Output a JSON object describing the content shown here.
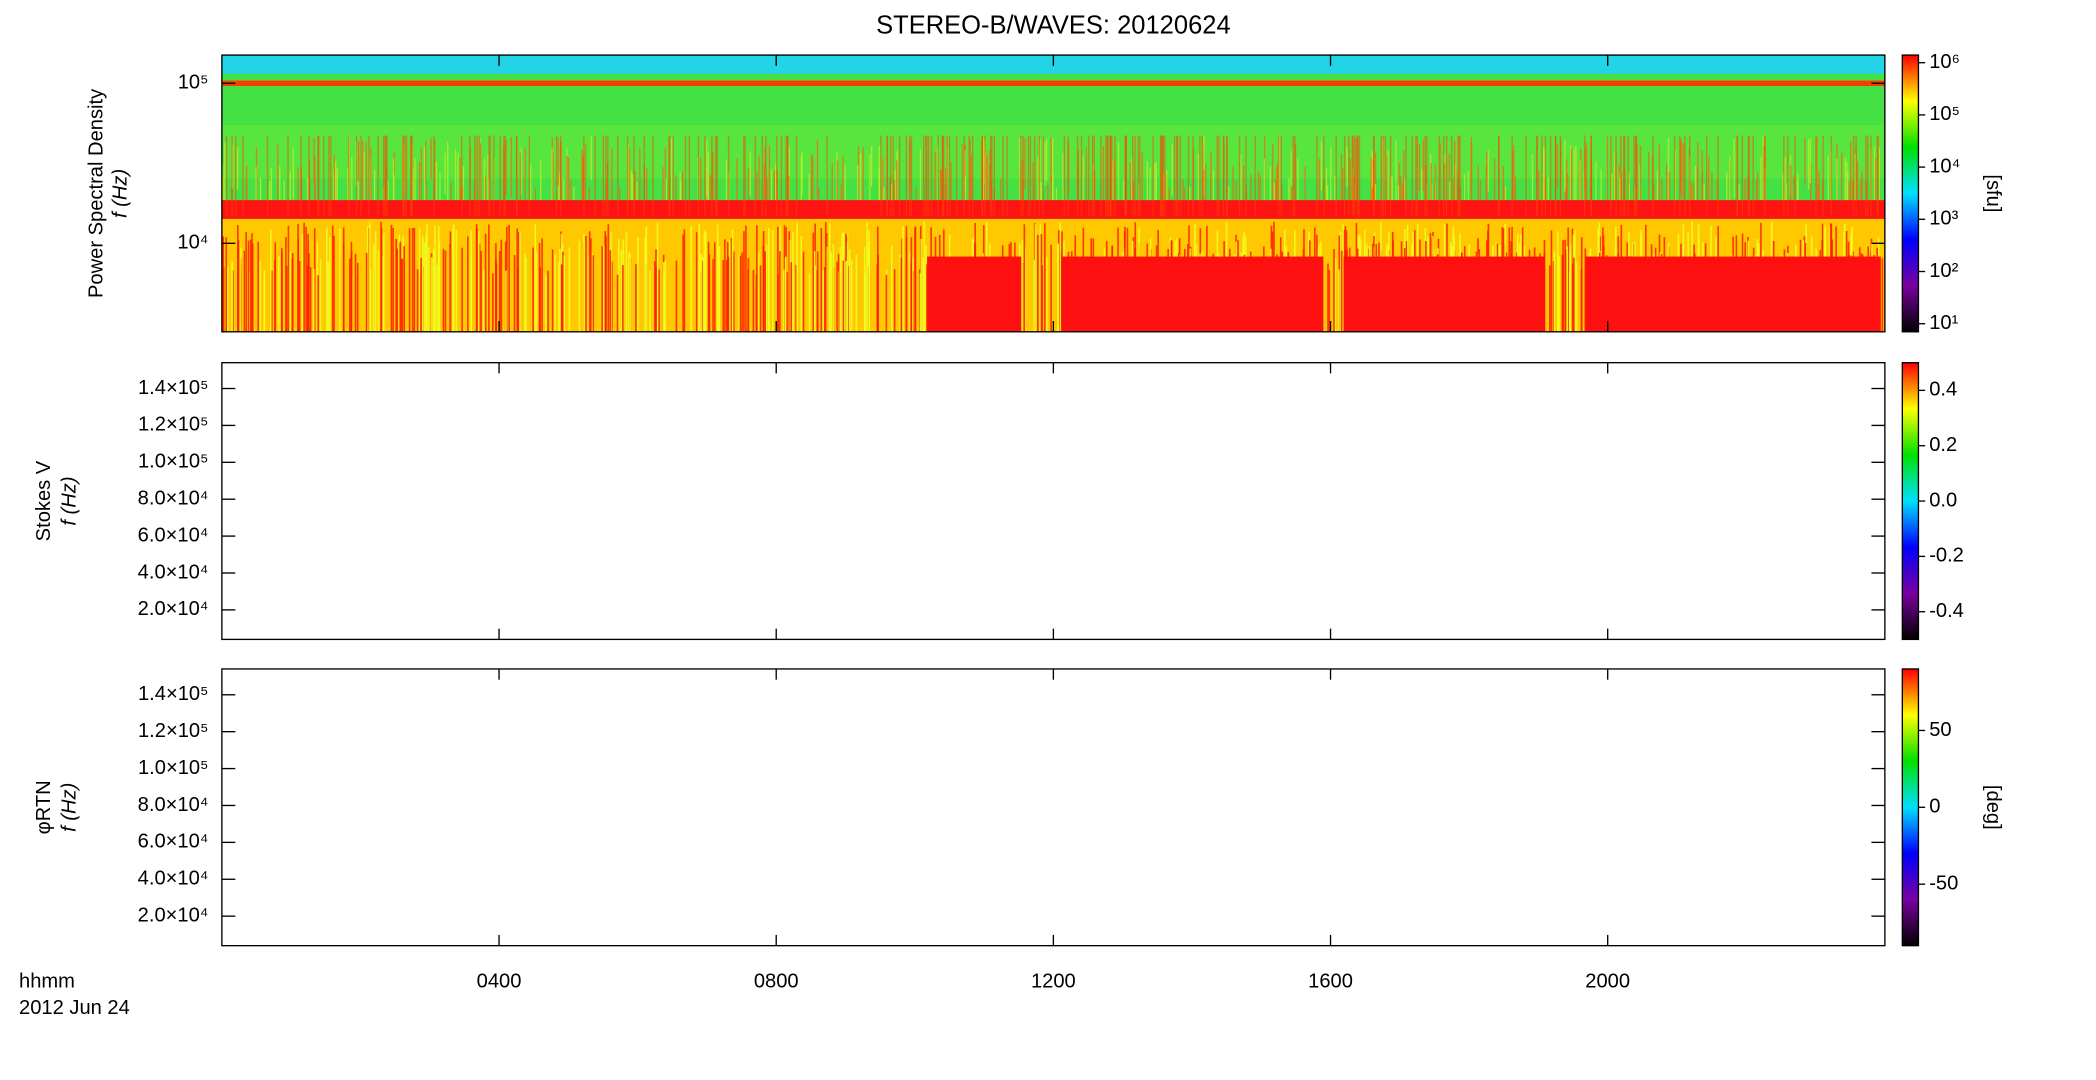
{
  "title": "STEREO-B/WAVES: 20120624",
  "time_labels": [
    "hhmm",
    "2012 Jun 24"
  ],
  "colormap": [
    "#000000",
    "#7a00a0",
    "#0000ff",
    "#00e0ff",
    "#00e000",
    "#ffff00",
    "#ff0000"
  ],
  "chart_data": [
    {
      "type": "heatmap",
      "ylabel": [
        "Power Spectral Density",
        "f (Hz)"
      ],
      "ylim": [
        2800,
        150000
      ],
      "log_y": true,
      "yticks": [
        {
          "value": 10000,
          "label": "10⁴"
        },
        {
          "value": 100000,
          "label": "10⁵"
        }
      ],
      "colorbar": {
        "label": "[sfu]",
        "lim": [
          7,
          1400000
        ],
        "log": true,
        "ticks": [
          {
            "value": 10,
            "label": "10¹"
          },
          {
            "value": 100,
            "label": "10²"
          },
          {
            "value": 1000,
            "label": "10³"
          },
          {
            "value": 10000,
            "label": "10⁴"
          },
          {
            "value": 100000,
            "label": "10⁵"
          },
          {
            "value": 1000000,
            "label": "10⁶"
          }
        ]
      }
    },
    {
      "type": "heatmap",
      "ylabel": [
        "Stokes V",
        "f (Hz)"
      ],
      "ylim": [
        4000,
        154000
      ],
      "log_y": false,
      "yticks": [
        {
          "value": 20000,
          "label": "2.0×10⁴"
        },
        {
          "value": 40000,
          "label": "4.0×10⁴"
        },
        {
          "value": 60000,
          "label": "6.0×10⁴"
        },
        {
          "value": 80000,
          "label": "8.0×10⁴"
        },
        {
          "value": 100000,
          "label": "1.0×10⁵"
        },
        {
          "value": 120000,
          "label": "1.2×10⁵"
        },
        {
          "value": 140000,
          "label": "1.4×10⁵"
        }
      ],
      "colorbar": {
        "lim": [
          -0.5,
          0.5
        ],
        "log": false,
        "ticks": [
          -0.4,
          -0.2,
          {
            "value": 0,
            "label": "0.0"
          },
          0.2,
          0.4
        ]
      }
    },
    {
      "type": "heatmap",
      "ylabel": [
        "φRTN",
        "f (Hz)"
      ],
      "ylim": [
        4000,
        154000
      ],
      "log_y": false,
      "yticks": [
        {
          "value": 20000,
          "label": "2.0×10⁴"
        },
        {
          "value": 40000,
          "label": "4.0×10⁴"
        },
        {
          "value": 60000,
          "label": "6.0×10⁴"
        },
        {
          "value": 80000,
          "label": "8.0×10⁴"
        },
        {
          "value": 100000,
          "label": "1.0×10⁵"
        },
        {
          "value": 120000,
          "label": "1.2×10⁵"
        },
        {
          "value": 140000,
          "label": "1.4×10⁵"
        }
      ],
      "colorbar": {
        "label": "[deg]",
        "lim": [
          -90,
          90
        ],
        "log": false,
        "ticks": [
          -50,
          0,
          50
        ]
      },
      "xlim": [
        0,
        24
      ],
      "xticks": [
        {
          "value": 4,
          "label": "0400"
        },
        {
          "value": 8,
          "label": "0800"
        },
        {
          "value": 12,
          "label": "1200"
        },
        {
          "value": 16,
          "label": "1600"
        },
        {
          "value": 20,
          "label": "2000"
        }
      ]
    }
  ]
}
